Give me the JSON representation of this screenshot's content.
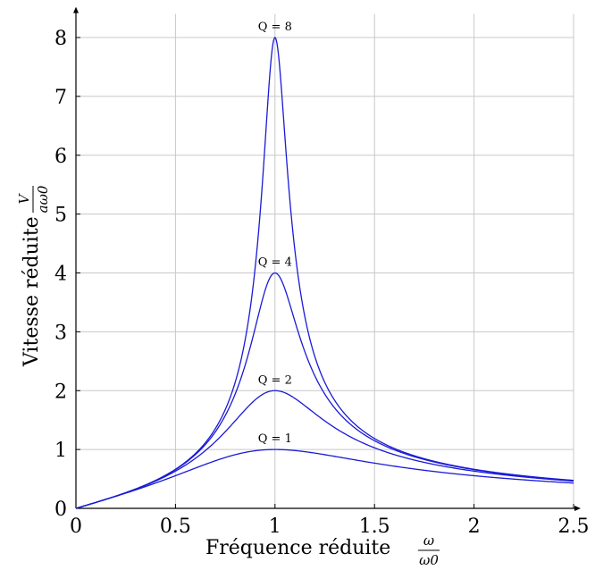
{
  "chart_data": {
    "type": "line",
    "xlabel": "Fréquence réduite",
    "xlabel_fraction": {
      "numerator": "ω",
      "denominator": "ω0"
    },
    "ylabel": "Vitesse réduite",
    "ylabel_fraction": {
      "numerator": "V",
      "denominator": "aω0"
    },
    "xlim": [
      0,
      2.5
    ],
    "ylim": [
      0,
      8.4
    ],
    "xticks": [
      0,
      0.5,
      1,
      1.5,
      2,
      2.5
    ],
    "xtick_labels": [
      "0",
      "0.5",
      "1",
      "1.5",
      "2",
      "2.5"
    ],
    "yticks": [
      0,
      1,
      2,
      3,
      4,
      5,
      6,
      7,
      8
    ],
    "ytick_labels": [
      "0",
      "1",
      "2",
      "3",
      "4",
      "5",
      "6",
      "7",
      "8"
    ],
    "grid": true,
    "line_color": "#1a1ad6",
    "series": [
      {
        "name": "Q = 1",
        "Q": 1,
        "peak": [
          1,
          1
        ]
      },
      {
        "name": "Q = 2",
        "Q": 2,
        "peak": [
          1,
          2
        ]
      },
      {
        "name": "Q = 4",
        "Q": 4,
        "peak": [
          1,
          4
        ]
      },
      {
        "name": "Q = 8",
        "Q": 8,
        "peak": [
          1,
          8
        ]
      }
    ]
  }
}
